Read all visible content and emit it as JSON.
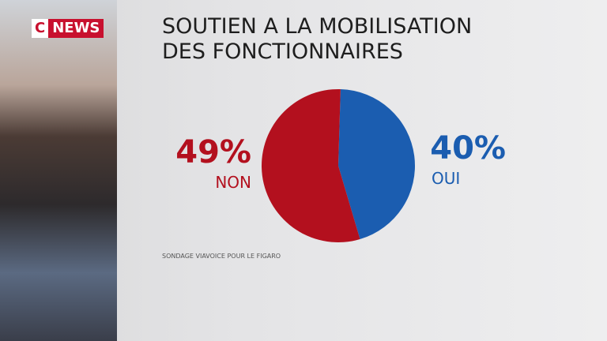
{
  "channel": {
    "prefix": "C",
    "name": "NEWS"
  },
  "chart_data": {
    "type": "pie",
    "title": "SOUTIEN A LA MOBILISATION DES FONCTIONNAIRES",
    "categories": [
      "OUI",
      "NON"
    ],
    "values": [
      40,
      49
    ],
    "value_labels": [
      "40%",
      "49%"
    ],
    "colors": [
      "#1b5db0",
      "#b3101e"
    ],
    "source": "SONDAGE VIAVOICE POUR LE FIGARO"
  }
}
